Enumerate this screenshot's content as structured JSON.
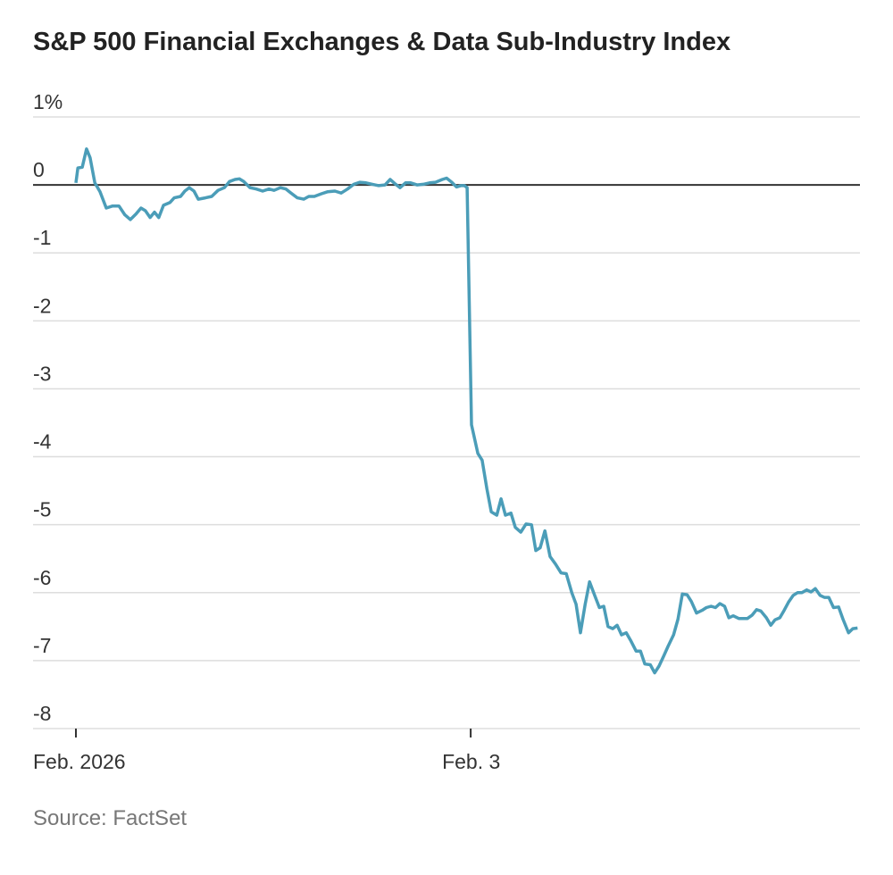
{
  "chart_data": {
    "type": "line",
    "title": "S&P 500 Financial Exchanges & Data Sub-Industry Index",
    "source": "Source: FactSet",
    "xlim": [
      0,
      1.986
    ],
    "xticks": [
      {
        "value": 0,
        "label": "Feb. 2026"
      },
      {
        "value": 1,
        "label": "Feb. 3"
      }
    ],
    "ylim": [
      -8,
      1
    ],
    "yticks": [
      {
        "value": 1,
        "label": "1%"
      },
      0,
      -1,
      -2,
      -3,
      -4,
      -5,
      -6,
      -7,
      -8
    ],
    "grid": true,
    "series": [
      {
        "color": "#4b9db8",
        "x": [
          0,
          0.005,
          0.016,
          0.027,
          0.036,
          0.048,
          0.061,
          0.077,
          0.093,
          0.109,
          0.124,
          0.138,
          0.152,
          0.165,
          0.176,
          0.188,
          0.199,
          0.21,
          0.222,
          0.238,
          0.249,
          0.265,
          0.276,
          0.287,
          0.299,
          0.31,
          0.328,
          0.344,
          0.36,
          0.376,
          0.389,
          0.403,
          0.414,
          0.425,
          0.441,
          0.457,
          0.473,
          0.489,
          0.502,
          0.518,
          0.532,
          0.545,
          0.561,
          0.577,
          0.59,
          0.604,
          0.622,
          0.638,
          0.656,
          0.672,
          0.688,
          0.704,
          0.719,
          0.735,
          0.751,
          0.767,
          0.783,
          0.796,
          0.81,
          0.821,
          0.835,
          0.848,
          0.864,
          0.88,
          0.896,
          0.911,
          0.928,
          0.939,
          0.952,
          0.964,
          0.975,
          0.984,
          0.991,
          1.002,
          1.018,
          1.029,
          1.041,
          1.052,
          1.066,
          1.077,
          1.088,
          1.102,
          1.113,
          1.127,
          1.14,
          1.154,
          1.165,
          1.176,
          1.188,
          1.201,
          1.215,
          1.229,
          1.242,
          1.256,
          1.267,
          1.278,
          1.29,
          1.301,
          1.314,
          1.326,
          1.337,
          1.348,
          1.36,
          1.371,
          1.382,
          1.394,
          1.405,
          1.419,
          1.43,
          1.441,
          1.455,
          1.466,
          1.477,
          1.489,
          1.5,
          1.514,
          1.525,
          1.536,
          1.548,
          1.559,
          1.572,
          1.586,
          1.597,
          1.609,
          1.62,
          1.631,
          1.643,
          1.654,
          1.665,
          1.679,
          1.69,
          1.701,
          1.713,
          1.724,
          1.735,
          1.749,
          1.76,
          1.771,
          1.783,
          1.794,
          1.805,
          1.817,
          1.828,
          1.839,
          1.851,
          1.862,
          1.873,
          1.885,
          1.896,
          1.907,
          1.919,
          1.932,
          1.943,
          1.957,
          1.968,
          1.98
        ],
        "values": [
          0.03,
          0.25,
          0.26,
          0.53,
          0.4,
          0.03,
          -0.1,
          -0.34,
          -0.31,
          -0.31,
          -0.44,
          -0.51,
          -0.43,
          -0.34,
          -0.38,
          -0.48,
          -0.4,
          -0.48,
          -0.3,
          -0.26,
          -0.19,
          -0.17,
          -0.09,
          -0.04,
          -0.09,
          -0.21,
          -0.19,
          -0.17,
          -0.08,
          -0.04,
          0.05,
          0.08,
          0.09,
          0.05,
          -0.04,
          -0.06,
          -0.09,
          -0.06,
          -0.08,
          -0.04,
          -0.06,
          -0.12,
          -0.19,
          -0.21,
          -0.17,
          -0.17,
          -0.13,
          -0.1,
          -0.09,
          -0.12,
          -0.06,
          0.01,
          0.04,
          0.03,
          0.01,
          -0.01,
          0,
          0.08,
          0.01,
          -0.04,
          0.03,
          0.03,
          0,
          0.01,
          0.03,
          0.04,
          0.08,
          0.1,
          0.04,
          -0.03,
          -0.01,
          -0.01,
          -0.04,
          -3.53,
          -3.95,
          -4.05,
          -4.47,
          -4.81,
          -4.86,
          -4.62,
          -4.86,
          -4.83,
          -5.04,
          -5.11,
          -4.99,
          -5.0,
          -5.38,
          -5.34,
          -5.09,
          -5.47,
          -5.58,
          -5.71,
          -5.72,
          -6.0,
          -6.17,
          -6.59,
          -6.17,
          -5.84,
          -6.04,
          -6.22,
          -6.2,
          -6.5,
          -6.53,
          -6.48,
          -6.62,
          -6.59,
          -6.7,
          -6.86,
          -6.86,
          -7.05,
          -7.06,
          -7.18,
          -7.08,
          -6.93,
          -6.79,
          -6.62,
          -6.39,
          -6.02,
          -6.03,
          -6.13,
          -6.3,
          -6.26,
          -6.22,
          -6.2,
          -6.22,
          -6.16,
          -6.2,
          -6.37,
          -6.34,
          -6.38,
          -6.38,
          -6.38,
          -6.33,
          -6.25,
          -6.27,
          -6.37,
          -6.48,
          -6.4,
          -6.37,
          -6.26,
          -6.14,
          -6.04,
          -6.0,
          -6.0,
          -5.96,
          -5.99,
          -5.94,
          -6.04,
          -6.07,
          -6.07,
          -6.22,
          -6.21,
          -6.39,
          -6.59,
          -6.53,
          -6.52
        ]
      }
    ]
  }
}
